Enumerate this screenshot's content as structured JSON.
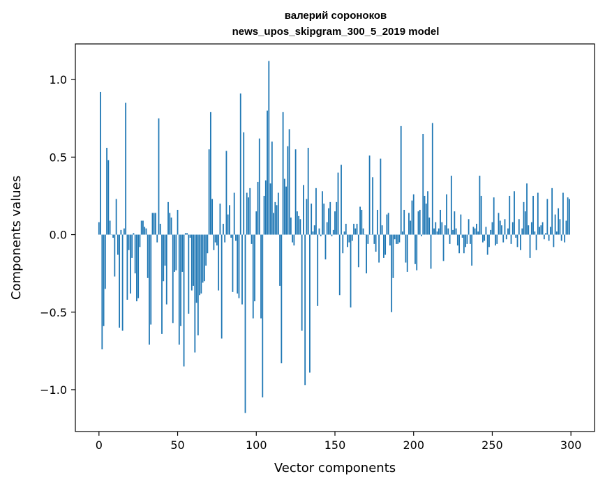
{
  "chart_data": {
    "type": "bar",
    "title": "валерий сороноков",
    "subtitle": "news_upos_skipgram_300_5_2019 model",
    "xlabel": "Vector components",
    "ylabel": "Components values",
    "xlim": [
      -15,
      315
    ],
    "ylim": [
      -1.27,
      1.23
    ],
    "xticks": [
      0,
      50,
      100,
      150,
      200,
      250,
      300
    ],
    "xtick_labels": [
      "0",
      "50",
      "100",
      "150",
      "200",
      "250",
      "300"
    ],
    "yticks": [
      1.0,
      0.5,
      0.0,
      -0.5,
      -1.0
    ],
    "ytick_labels": [
      "1.0",
      "0.5",
      "0.0",
      "−0.5",
      "−1.0"
    ],
    "grid": false,
    "bar_color": "#1f77b4",
    "x": [
      0,
      1,
      2,
      3,
      4,
      5,
      6,
      7,
      8,
      9,
      10,
      11,
      12,
      13,
      14,
      15,
      16,
      17,
      18,
      19,
      20,
      21,
      22,
      23,
      24,
      25,
      26,
      27,
      28,
      29,
      30,
      31,
      32,
      33,
      34,
      35,
      36,
      37,
      38,
      39,
      40,
      41,
      42,
      43,
      44,
      45,
      46,
      47,
      48,
      49,
      50,
      51,
      52,
      53,
      54,
      55,
      56,
      57,
      58,
      59,
      60,
      61,
      62,
      63,
      64,
      65,
      66,
      67,
      68,
      69,
      70,
      71,
      72,
      73,
      74,
      75,
      76,
      77,
      78,
      79,
      80,
      81,
      82,
      83,
      84,
      85,
      86,
      87,
      88,
      89,
      90,
      91,
      92,
      93,
      94,
      95,
      96,
      97,
      98,
      99,
      100,
      101,
      102,
      103,
      104,
      105,
      106,
      107,
      108,
      109,
      110,
      111,
      112,
      113,
      114,
      115,
      116,
      117,
      118,
      119,
      120,
      121,
      122,
      123,
      124,
      125,
      126,
      127,
      128,
      129,
      130,
      131,
      132,
      133,
      134,
      135,
      136,
      137,
      138,
      139,
      140,
      141,
      142,
      143,
      144,
      145,
      146,
      147,
      148,
      149,
      150,
      151,
      152,
      153,
      154,
      155,
      156,
      157,
      158,
      159,
      160,
      161,
      162,
      163,
      164,
      165,
      166,
      167,
      168,
      169,
      170,
      171,
      172,
      173,
      174,
      175,
      176,
      177,
      178,
      179,
      180,
      181,
      182,
      183,
      184,
      185,
      186,
      187,
      188,
      189,
      190,
      191,
      192,
      193,
      194,
      195,
      196,
      197,
      198,
      199,
      200,
      201,
      202,
      203,
      204,
      205,
      206,
      207,
      208,
      209,
      210,
      211,
      212,
      213,
      214,
      215,
      216,
      217,
      218,
      219,
      220,
      221,
      222,
      223,
      224,
      225,
      226,
      227,
      228,
      229,
      230,
      231,
      232,
      233,
      234,
      235,
      236,
      237,
      238,
      239,
      240,
      241,
      242,
      243,
      244,
      245,
      246,
      247,
      248,
      249,
      250,
      251,
      252,
      253,
      254,
      255,
      256,
      257,
      258,
      259,
      260,
      261,
      262,
      263,
      264,
      265,
      266,
      267,
      268,
      269,
      270,
      271,
      272,
      273,
      274,
      275,
      276,
      277,
      278,
      279,
      280,
      281,
      282,
      283,
      284,
      285,
      286,
      287,
      288,
      289,
      290,
      291,
      292,
      293,
      294,
      295,
      296,
      297,
      298,
      299
    ],
    "values": [
      0.08,
      0.92,
      -0.74,
      -0.59,
      -0.35,
      0.56,
      0.48,
      0.09,
      0.0,
      -0.02,
      -0.27,
      0.23,
      -0.13,
      -0.6,
      0.03,
      -0.62,
      0.04,
      0.85,
      -0.42,
      -0.1,
      -0.38,
      -0.15,
      0.01,
      -0.25,
      -0.43,
      -0.41,
      -0.08,
      0.09,
      0.09,
      0.05,
      0.04,
      -0.28,
      -0.71,
      -0.58,
      0.14,
      0.14,
      0.14,
      -0.05,
      0.75,
      0.07,
      -0.64,
      -0.3,
      -0.2,
      -0.45,
      0.21,
      0.14,
      0.11,
      -0.57,
      -0.24,
      -0.23,
      0.16,
      -0.71,
      -0.59,
      -0.24,
      -0.85,
      0.01,
      0.01,
      -0.51,
      -0.02,
      -0.36,
      -0.33,
      -0.76,
      -0.44,
      -0.65,
      -0.39,
      -0.38,
      -0.31,
      -0.3,
      -0.2,
      -0.12,
      0.55,
      0.79,
      0.23,
      -0.1,
      -0.05,
      -0.07,
      -0.36,
      0.2,
      -0.67,
      0.07,
      -0.05,
      0.54,
      0.13,
      0.19,
      -0.02,
      -0.37,
      0.27,
      -0.04,
      -0.38,
      -0.41,
      0.91,
      -0.45,
      0.66,
      -1.15,
      0.27,
      0.24,
      0.3,
      -0.06,
      -0.54,
      -0.43,
      0.15,
      0.34,
      0.62,
      -0.54,
      -1.05,
      0.25,
      0.35,
      0.8,
      1.12,
      0.33,
      0.6,
      0.14,
      0.21,
      0.19,
      0.27,
      -0.33,
      -0.83,
      0.79,
      0.36,
      0.31,
      0.57,
      0.68,
      0.11,
      -0.05,
      -0.07,
      0.55,
      0.15,
      0.12,
      0.1,
      -0.62,
      0.32,
      -0.97,
      0.23,
      0.56,
      -0.89,
      0.2,
      0.02,
      0.06,
      0.3,
      -0.46,
      0.04,
      -0.01,
      0.28,
      0.2,
      -0.16,
      0.08,
      0.17,
      0.21,
      -0.01,
      0.03,
      0.15,
      0.21,
      0.4,
      -0.39,
      0.45,
      -0.12,
      0.02,
      0.07,
      -0.08,
      -0.05,
      -0.47,
      -0.04,
      0.07,
      0.04,
      0.07,
      -0.21,
      0.18,
      0.16,
      0.04,
      0.0,
      -0.25,
      -0.06,
      0.51,
      0.0,
      0.37,
      -0.06,
      -0.11,
      0.16,
      -0.18,
      0.49,
      0.06,
      -0.15,
      -0.13,
      0.13,
      0.14,
      -0.07,
      -0.5,
      -0.28,
      -0.03,
      -0.06,
      -0.06,
      -0.05,
      0.7,
      0.02,
      0.16,
      -0.18,
      -0.24,
      0.14,
      0.09,
      0.22,
      0.26,
      -0.19,
      -0.23,
      0.15,
      0.16,
      -0.01,
      0.65,
      0.25,
      0.2,
      0.28,
      0.11,
      -0.22,
      0.72,
      0.04,
      0.08,
      0.02,
      0.04,
      0.16,
      0.08,
      -0.17,
      0.06,
      0.26,
      0.04,
      -0.06,
      0.38,
      0.03,
      0.15,
      0.04,
      -0.07,
      -0.12,
      0.13,
      -0.02,
      -0.12,
      -0.08,
      -0.06,
      0.1,
      -0.06,
      -0.2,
      0.05,
      0.04,
      0.07,
      0.02,
      0.38,
      0.25,
      -0.05,
      -0.04,
      0.05,
      -0.13,
      -0.08,
      0.03,
      0.08,
      0.24,
      -0.07,
      -0.06,
      0.14,
      0.09,
      0.06,
      -0.05,
      0.1,
      -0.03,
      0.04,
      0.25,
      -0.06,
      0.08,
      0.28,
      -0.02,
      -0.08,
      0.1,
      -0.1,
      0.04,
      0.21,
      0.15,
      0.33,
      0.06,
      -0.15,
      0.08,
      0.25,
      0.02,
      -0.1,
      0.27,
      0.05,
      0.06,
      0.08,
      -0.03,
      0.01,
      0.23,
      -0.04,
      0.05,
      0.3,
      -0.08,
      0.13,
      0.02,
      0.17,
      0.1,
      -0.04,
      0.27,
      -0.05,
      0.09,
      0.24,
      0.23
    ]
  }
}
